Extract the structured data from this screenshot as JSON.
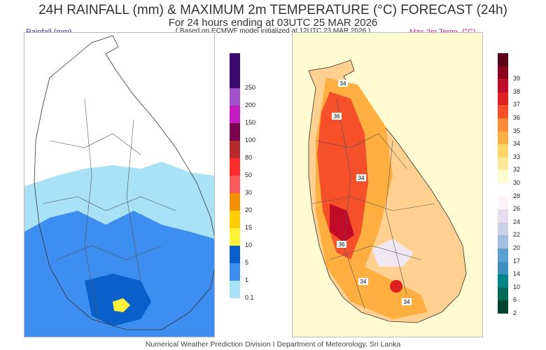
{
  "title": "24H RAINFALL (mm) & MAXIMUM 2m TEMPERATURE (°C) FORECAST (24h)",
  "subtitle": "For 24 hours ending at 03UTC 25 MAR 2026",
  "model_note": "( Based on ECMWF model initialized at 12UTC 23 MAR 2026 )",
  "rain_panel": {
    "label": "Rainfall (mm)",
    "label_color": "#3333aa",
    "legend": [
      {
        "v": "0.1",
        "c": "#a9e1f7"
      },
      {
        "v": "1",
        "c": "#3d8ef0"
      },
      {
        "v": "5",
        "c": "#0a5fc8"
      },
      {
        "v": "10",
        "c": "#fff23a"
      },
      {
        "v": "15",
        "c": "#ffcc00"
      },
      {
        "v": "20",
        "c": "#f29200"
      },
      {
        "v": "30",
        "c": "#ff5c5c"
      },
      {
        "v": "50",
        "c": "#ff2a2a"
      },
      {
        "v": "80",
        "c": "#b52a2a"
      },
      {
        "v": "100",
        "c": "#7a0050"
      },
      {
        "v": "150",
        "c": "#c01cc0"
      },
      {
        "v": "200",
        "c": "#a050c8"
      },
      {
        "v": "250",
        "c": "#3c0a6e"
      },
      {
        "v": "",
        "c": "#3c0a6e"
      }
    ]
  },
  "temp_panel": {
    "label": "Max 2m Temp. (°C)",
    "label_color": "#cc2299",
    "legend": [
      {
        "v": "2",
        "c": "#00432f"
      },
      {
        "v": "6",
        "c": "#006a55"
      },
      {
        "v": "10",
        "c": "#00858a"
      },
      {
        "v": "14",
        "c": "#3d8fc0"
      },
      {
        "v": "17",
        "c": "#5aa0d0"
      },
      {
        "v": "20",
        "c": "#a4bedf"
      },
      {
        "v": "22",
        "c": "#cad0e8"
      },
      {
        "v": "24",
        "c": "#e6def0"
      },
      {
        "v": "26",
        "c": "#fff2fa"
      },
      {
        "v": "28",
        "c": "#ffffff"
      },
      {
        "v": "30",
        "c": "#fffbd0"
      },
      {
        "v": "32",
        "c": "#ffe89a"
      },
      {
        "v": "33",
        "c": "#ffd568"
      },
      {
        "v": "34",
        "c": "#ffae40"
      },
      {
        "v": "35",
        "c": "#ff8c34"
      },
      {
        "v": "36",
        "c": "#f5502a"
      },
      {
        "v": "37",
        "c": "#e0201e"
      },
      {
        "v": "38",
        "c": "#c00c28"
      },
      {
        "v": "39",
        "c": "#8c0020"
      },
      {
        "v": "",
        "c": "#5a0018"
      }
    ],
    "contour_labels": [
      "34",
      "36",
      "34",
      "36",
      "34",
      "34"
    ]
  },
  "footer": "Numerical Weather Prediction Division I Department of Meteorology, Sri Lanka"
}
